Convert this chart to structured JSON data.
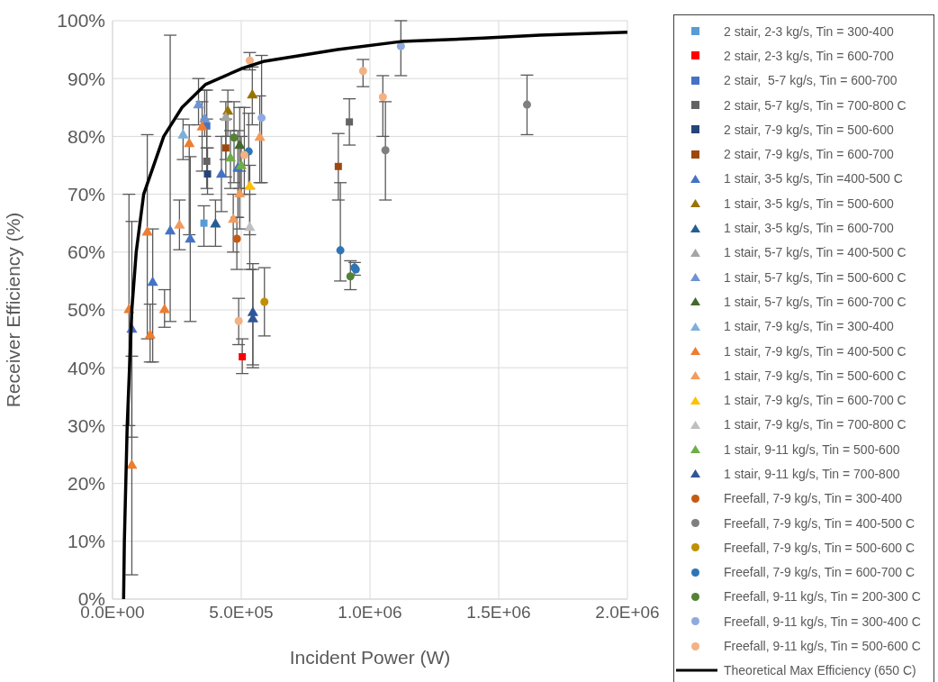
{
  "chart_data": {
    "type": "scatter",
    "xlabel": "Incident Power (W)",
    "ylabel": "Receiver Efficiency (%)",
    "xlim": [
      0,
      2000000
    ],
    "ylim": [
      0,
      100
    ],
    "xticks": [
      {
        "value": 0,
        "label": "0.0E+00"
      },
      {
        "value": 500000,
        "label": "5.0E+05"
      },
      {
        "value": 1000000,
        "label": "1.0E+06"
      },
      {
        "value": 1500000,
        "label": "1.5E+06"
      },
      {
        "value": 2000000,
        "label": "2.0E+06"
      }
    ],
    "yticks": [
      {
        "value": 0,
        "label": "0%"
      },
      {
        "value": 10,
        "label": "10%"
      },
      {
        "value": 20,
        "label": "20%"
      },
      {
        "value": 30,
        "label": "30%"
      },
      {
        "value": 40,
        "label": "40%"
      },
      {
        "value": 50,
        "label": "50%"
      },
      {
        "value": 60,
        "label": "60%"
      },
      {
        "value": 70,
        "label": "70%"
      },
      {
        "value": 80,
        "label": "80%"
      },
      {
        "value": 90,
        "label": "90%"
      },
      {
        "value": 100,
        "label": "100%"
      }
    ],
    "grid": true,
    "legend": "right",
    "series": [
      {
        "name": "2 stair, 2-3 kg/s, Tin = 300-400",
        "color": "#5b9bd5",
        "marker": "square",
        "x": [
          355000
        ],
        "values": [
          65
        ],
        "errors": [
          [
            61,
            68
          ]
        ]
      },
      {
        "name": "2 stair, 2-3 kg/s, Tin = 600-700",
        "color": "#ff0000",
        "marker": "square",
        "x": [
          504000
        ],
        "values": [
          41.9
        ],
        "errors": [
          [
            39,
            45
          ]
        ]
      },
      {
        "name": "2 stair,  5-7 kg/s, Tin = 600-700",
        "color": "#4472c4",
        "marker": "square",
        "x": [
          366000
        ],
        "values": [
          81.8
        ],
        "errors": [
          [
            78,
            88
          ]
        ]
      },
      {
        "name": "2 stair, 5-7 kg/s, Tin = 700-800 C",
        "color": "#636363",
        "marker": "square",
        "x": [
          366000,
          920000
        ],
        "values": [
          75.7,
          82.5
        ],
        "errors": [
          [
            71,
            83
          ],
          [
            78.5,
            86.5
          ]
        ]
      },
      {
        "name": "2 stair, 7-9 kg/s, Tin = 500-600",
        "color": "#264478",
        "marker": "square",
        "x": [
          369000
        ],
        "values": [
          73.5
        ],
        "errors": [
          [
            70,
            78
          ]
        ]
      },
      {
        "name": "2 stair, 7-9 kg/s, Tin = 600-700",
        "color": "#9e480e",
        "marker": "square",
        "x": [
          440000,
          877000
        ],
        "values": [
          78,
          74.8
        ],
        "errors": [
          [
            73,
            83
          ],
          [
            69,
            80.5
          ]
        ]
      },
      {
        "name": "1 stair, 3-5 kg/s, Tin =400-500 C",
        "color": "#4472c4",
        "marker": "triangle",
        "x": [
          75000,
          156000,
          224000,
          302000,
          423000,
          487000
        ],
        "values": [
          46.6,
          54.7,
          63.6,
          62.2,
          73.4,
          74.5
        ],
        "errors": [
          [
            28,
            65.3
          ],
          [
            41,
            64
          ],
          [
            48,
            97.5
          ],
          [
            48,
            76.5
          ],
          [
            67,
            80
          ],
          [
            66,
            81
          ]
        ]
      },
      {
        "name": "1 stair, 3-5 kg/s, Tin = 500-600",
        "color": "#997300",
        "marker": "triangle",
        "x": [
          448000,
          543000
        ],
        "values": [
          84.3,
          87.1
        ],
        "errors": [
          [
            80,
            88
          ],
          [
            82,
            92
          ]
        ]
      },
      {
        "name": "1 stair, 3-5 kg/s, Tin = 600-700",
        "color": "#255e91",
        "marker": "triangle",
        "x": [
          400000
        ],
        "values": [
          64.8
        ],
        "errors": [
          [
            61,
            69
          ]
        ]
      },
      {
        "name": "1 stair, 5-7 kg/s, Tin = 400-500 C",
        "color": "#a5a5a5",
        "marker": "triangle",
        "x": [
          440000
        ],
        "values": [
          83.2
        ],
        "errors": [
          [
            76,
            86
          ]
        ]
      },
      {
        "name": "1 stair, 5-7 kg/s, Tin = 500-600 C",
        "color": "#6f93d2",
        "marker": "triangle",
        "x": [
          334000,
          358000
        ],
        "values": [
          85.4,
          83
        ],
        "errors": [
          [
            82,
            90
          ],
          [
            80,
            88
          ]
        ]
      },
      {
        "name": "1 stair, 5-7 kg/s, Tin = 600-700 C",
        "color": "#43682b",
        "marker": "triangle",
        "x": [
          494000
        ],
        "values": [
          78.4
        ],
        "errors": [
          [
            71,
            85
          ]
        ]
      },
      {
        "name": "1 stair, 7-9 kg/s, Tin = 300-400",
        "color": "#7cafdd",
        "marker": "triangle",
        "x": [
          274000
        ],
        "values": [
          80.2
        ],
        "errors": [
          [
            76,
            83
          ]
        ]
      },
      {
        "name": "1 stair, 7-9 kg/s, Tin = 400-500 C",
        "color": "#ed7d31",
        "marker": "triangle",
        "x": [
          64000,
          75000,
          135000,
          146000,
          202000,
          298000,
          348000
        ],
        "values": [
          50,
          23.1,
          63.4,
          45.6,
          50,
          78.7,
          81.6
        ],
        "errors": [
          [
            30,
            70
          ],
          [
            4.2,
            42
          ],
          [
            45,
            80.3
          ],
          [
            41,
            51
          ],
          [
            47,
            53.5
          ],
          [
            63,
            82
          ],
          [
            74,
            86
          ]
        ]
      },
      {
        "name": "1 stair, 7-9 kg/s, Tin = 500-600 C",
        "color": "#f19c5f",
        "marker": "triangle",
        "x": [
          260000,
          469000,
          494000,
          572000
        ],
        "values": [
          64.6,
          65.6,
          70,
          79.8
        ],
        "errors": [
          [
            60.4,
            69
          ],
          [
            60,
            70
          ],
          [
            64,
            74
          ],
          [
            72,
            87
          ]
        ]
      },
      {
        "name": "1 stair, 7-9 kg/s, Tin = 600-700 C",
        "color": "#ffc000",
        "marker": "triangle",
        "x": [
          533000
        ],
        "values": [
          71.3
        ],
        "errors": [
          [
            63,
            75
          ]
        ]
      },
      {
        "name": "1 stair, 7-9 kg/s, Tin = 700-800 C",
        "color": "#bfbfbf",
        "marker": "triangle",
        "x": [
          533000
        ],
        "values": [
          64.2
        ],
        "errors": [
          [
            57,
            70
          ]
        ]
      },
      {
        "name": "1 stair, 9-11 kg/s, Tin = 500-600",
        "color": "#70ad47",
        "marker": "triangle",
        "x": [
          458000,
          500000
        ],
        "values": [
          76.2,
          74.9
        ],
        "errors": [
          [
            71,
            81
          ],
          [
            70,
            80
          ]
        ]
      },
      {
        "name": "1 stair, 9-11 kg/s, Tin = 700-800",
        "color": "#2f5597",
        "marker": "triangle",
        "x": [
          545000,
          545000
        ],
        "values": [
          49.5,
          48.4
        ],
        "errors": [
          [
            40,
            58
          ],
          [
            40.5,
            57
          ]
        ]
      },
      {
        "name": "Freefall, 7-9 kg/s, Tin = 300-400",
        "color": "#c55a11",
        "marker": "circle",
        "x": [
          483000
        ],
        "values": [
          62.3
        ],
        "errors": [
          [
            57,
            66
          ]
        ]
      },
      {
        "name": "Freefall, 7-9 kg/s, Tin = 400-500 C",
        "color": "#7f7f7f",
        "marker": "circle",
        "x": [
          1060000,
          1610000
        ],
        "values": [
          77.6,
          85.5
        ],
        "errors": [
          [
            69,
            86
          ],
          [
            80.3,
            90.6
          ]
        ]
      },
      {
        "name": "Freefall, 7-9 kg/s, Tin = 500-600 C",
        "color": "#bf9000",
        "marker": "circle",
        "x": [
          590000
        ],
        "values": [
          51.4
        ],
        "errors": [
          [
            45.5,
            57.3
          ]
        ]
      },
      {
        "name": "Freefall, 7-9 kg/s, Tin = 600-700 C",
        "color": "#2e75b6",
        "marker": "circle",
        "x": [
          529000,
          885000,
          940000,
          945000
        ],
        "values": [
          77.4,
          60.3,
          57.3,
          57
        ],
        "errors": [
          [
            71,
            84
          ],
          [
            55,
            72
          ],
          [
            56,
            58.2
          ],
          null
        ]
      },
      {
        "name": "Freefall, 9-11 kg/s, Tin = 200-300 C",
        "color": "#548235",
        "marker": "circle",
        "x": [
          472000,
          924000
        ],
        "values": [
          79.8,
          55.8
        ],
        "errors": [
          [
            72,
            86
          ],
          [
            53.5,
            58.5
          ]
        ]
      },
      {
        "name": "Freefall, 9-11 kg/s, Tin = 300-400 C",
        "color": "#8faadc",
        "marker": "circle",
        "x": [
          579000,
          1120000
        ],
        "values": [
          83.2,
          95.6
        ],
        "errors": [
          [
            72,
            94
          ],
          [
            90.5,
            100
          ]
        ]
      },
      {
        "name": "Freefall, 9-11 kg/s, Tin = 500-600 C",
        "color": "#f4b183",
        "marker": "circle",
        "x": [
          533000,
          512000,
          490000,
          973000,
          1050000
        ],
        "values": [
          93.1,
          76.8,
          48.1,
          91.3,
          86.8
        ],
        "errors": [
          [
            91.5,
            94.5
          ],
          [
            70,
            85
          ],
          [
            44,
            52
          ],
          [
            88.6,
            93.3
          ],
          [
            80,
            90.5
          ]
        ]
      },
      {
        "name": "Theoretical Max Efficiency (650 C)",
        "type": "line",
        "color": "#000000",
        "marker": "none",
        "x": [
          43000,
          46000,
          57000,
          75000,
          92000,
          121000,
          199000,
          270000,
          362000,
          500000,
          590000,
          874000,
          1120000,
          1440000,
          1660000,
          2000000
        ],
        "values": [
          0,
          10,
          30,
          50,
          60,
          70,
          80,
          85,
          89,
          91.7,
          93,
          95,
          96.4,
          97,
          97.5,
          98
        ]
      }
    ]
  }
}
